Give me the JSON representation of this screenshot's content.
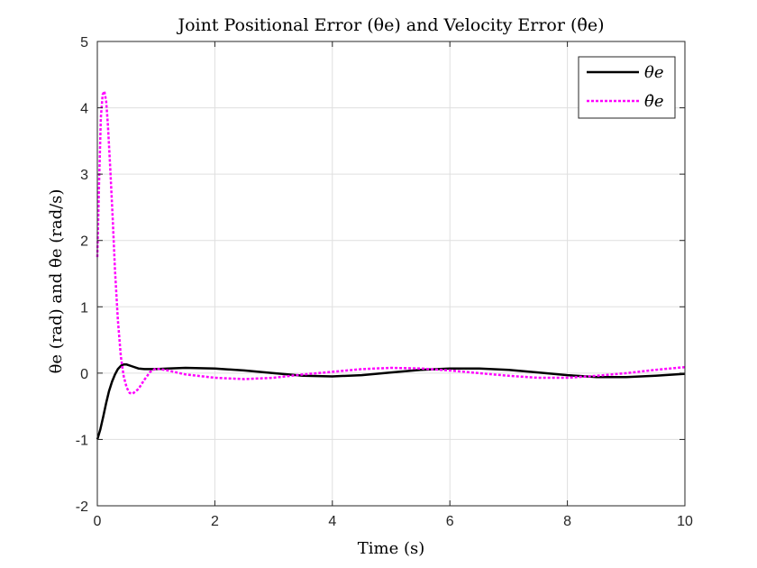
{
  "chart_data": {
    "type": "line",
    "title": "Joint Positional Error (θe) and Velocity Error (θ̇e)",
    "xlabel": "Time (s)",
    "ylabel": "θe (rad) and θ̇e (rad/s)",
    "xlim": [
      0,
      10
    ],
    "ylim": [
      -2,
      5
    ],
    "xticks": [
      "0",
      "2",
      "4",
      "6",
      "8",
      "10"
    ],
    "yticks": [
      "-2",
      "-1",
      "0",
      "1",
      "2",
      "3",
      "4",
      "5"
    ],
    "grid": true,
    "legend_position": "top-right",
    "series": [
      {
        "name": "θe",
        "color": "#000000",
        "style": "solid",
        "x": [
          0,
          0.05,
          0.1,
          0.15,
          0.2,
          0.25,
          0.3,
          0.35,
          0.4,
          0.45,
          0.5,
          0.6,
          0.7,
          0.8,
          1.0,
          1.2,
          1.5,
          2.0,
          2.5,
          3.0,
          3.5,
          4.0,
          4.5,
          5.0,
          5.5,
          6.0,
          6.5,
          7.0,
          7.5,
          8.0,
          8.5,
          9.0,
          9.5,
          10.0
        ],
        "y": [
          -1.0,
          -0.85,
          -0.66,
          -0.45,
          -0.27,
          -0.13,
          -0.02,
          0.06,
          0.11,
          0.13,
          0.13,
          0.1,
          0.07,
          0.06,
          0.06,
          0.07,
          0.08,
          0.07,
          0.04,
          0.0,
          -0.04,
          -0.05,
          -0.03,
          0.01,
          0.05,
          0.07,
          0.07,
          0.05,
          0.01,
          -0.03,
          -0.06,
          -0.06,
          -0.04,
          -0.01
        ]
      },
      {
        "name": "θ̇e",
        "color": "#ff00ff",
        "style": "dotted",
        "x": [
          0,
          0.03,
          0.06,
          0.09,
          0.12,
          0.15,
          0.18,
          0.22,
          0.26,
          0.3,
          0.35,
          0.4,
          0.45,
          0.5,
          0.55,
          0.6,
          0.7,
          0.8,
          0.9,
          1.0,
          1.2,
          1.5,
          2.0,
          2.5,
          3.0,
          3.5,
          4.0,
          4.5,
          5.0,
          5.5,
          6.0,
          6.5,
          7.0,
          7.5,
          8.0,
          8.5,
          9.0,
          9.5,
          10.0
        ],
        "y": [
          1.75,
          2.9,
          3.85,
          4.2,
          4.25,
          4.1,
          3.75,
          3.1,
          2.35,
          1.55,
          0.8,
          0.25,
          -0.05,
          -0.22,
          -0.3,
          -0.31,
          -0.24,
          -0.1,
          0.02,
          0.07,
          0.04,
          -0.02,
          -0.07,
          -0.09,
          -0.07,
          -0.02,
          0.02,
          0.06,
          0.08,
          0.07,
          0.04,
          0.0,
          -0.04,
          -0.07,
          -0.07,
          -0.04,
          0.0,
          0.05,
          0.09
        ]
      }
    ]
  }
}
